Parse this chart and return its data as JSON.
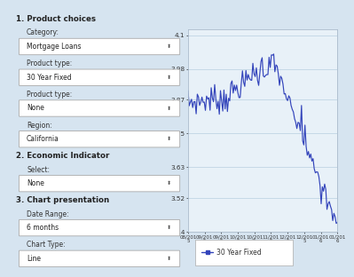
{
  "ylim": [
    3.4,
    4.12
  ],
  "yticks": [
    3.4,
    3.52,
    3.63,
    3.75,
    3.87,
    3.98,
    4.1
  ],
  "ytick_labels": [
    "3.4",
    "3.52",
    "3.63",
    "3.75",
    "3.87",
    "3.98",
    "4.1"
  ],
  "xtick_labels": [
    "08/201\n5",
    "09/201\n5",
    "09/201\n5",
    "10/201\n5",
    "10/201\n5",
    "11/201\n5",
    "12/201\n5",
    "12/201\n5",
    "01/201\n6",
    "01/201\n6"
  ],
  "line_color": "#3344bb",
  "bg_color": "#d6e4f0",
  "plot_bg_color": "#e8f1f8",
  "grid_color": "#b8cfe0",
  "legend_label": "30 Year Fixed",
  "legend_marker_color": "#3344bb",
  "left_panel_bg": "#d6e4f0",
  "chart_border_color": "#aabbcc",
  "items": [
    [
      "section",
      "1. Product choices"
    ],
    [
      "label",
      "Category:"
    ],
    [
      "dropdown",
      "Mortgage Loans"
    ],
    [
      "label",
      "Product type:"
    ],
    [
      "dropdown",
      "30 Year Fixed"
    ],
    [
      "label",
      "Product type:"
    ],
    [
      "dropdown",
      "None"
    ],
    [
      "label",
      "Region:"
    ],
    [
      "dropdown",
      "California"
    ],
    [
      "section",
      "2. Economic Indicator"
    ],
    [
      "label",
      "Select:"
    ],
    [
      "dropdown",
      "None"
    ],
    [
      "section",
      "3. Chart presentation"
    ],
    [
      "label",
      "Date Range:"
    ],
    [
      "dropdown",
      "6 months"
    ],
    [
      "label",
      "Chart Type:"
    ],
    [
      "dropdown",
      "Line"
    ]
  ]
}
